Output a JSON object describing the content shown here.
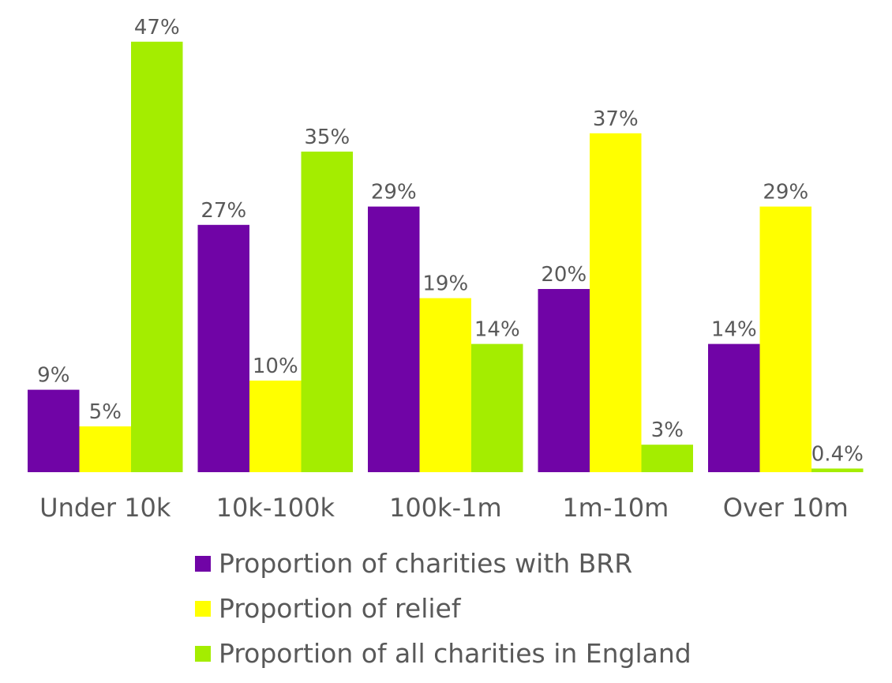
{
  "chart_data": {
    "type": "bar",
    "categories": [
      "Under 10k",
      "10k-100k",
      "100k-1m",
      "1m-10m",
      "Over 10m"
    ],
    "series": [
      {
        "name": "Proportion of charities with BRR",
        "color": "#7004A6",
        "values": [
          9,
          27,
          29,
          20,
          14
        ],
        "labels": [
          "9%",
          "27%",
          "29%",
          "20%",
          "14%"
        ]
      },
      {
        "name": "Proportion of relief",
        "color": "#FFFF00",
        "values": [
          5,
          10,
          19,
          37,
          29
        ],
        "labels": [
          "5%",
          "10%",
          "19%",
          "37%",
          "29%"
        ]
      },
      {
        "name": "Proportion of all charities in England",
        "color": "#A4ED00",
        "values": [
          47,
          35,
          14,
          3,
          0.4
        ],
        "labels": [
          "47%",
          "35%",
          "14%",
          "3%",
          "0.4%"
        ]
      }
    ],
    "title": "",
    "xlabel": "",
    "ylabel": "",
    "grid": false,
    "legend_position": "bottom"
  }
}
